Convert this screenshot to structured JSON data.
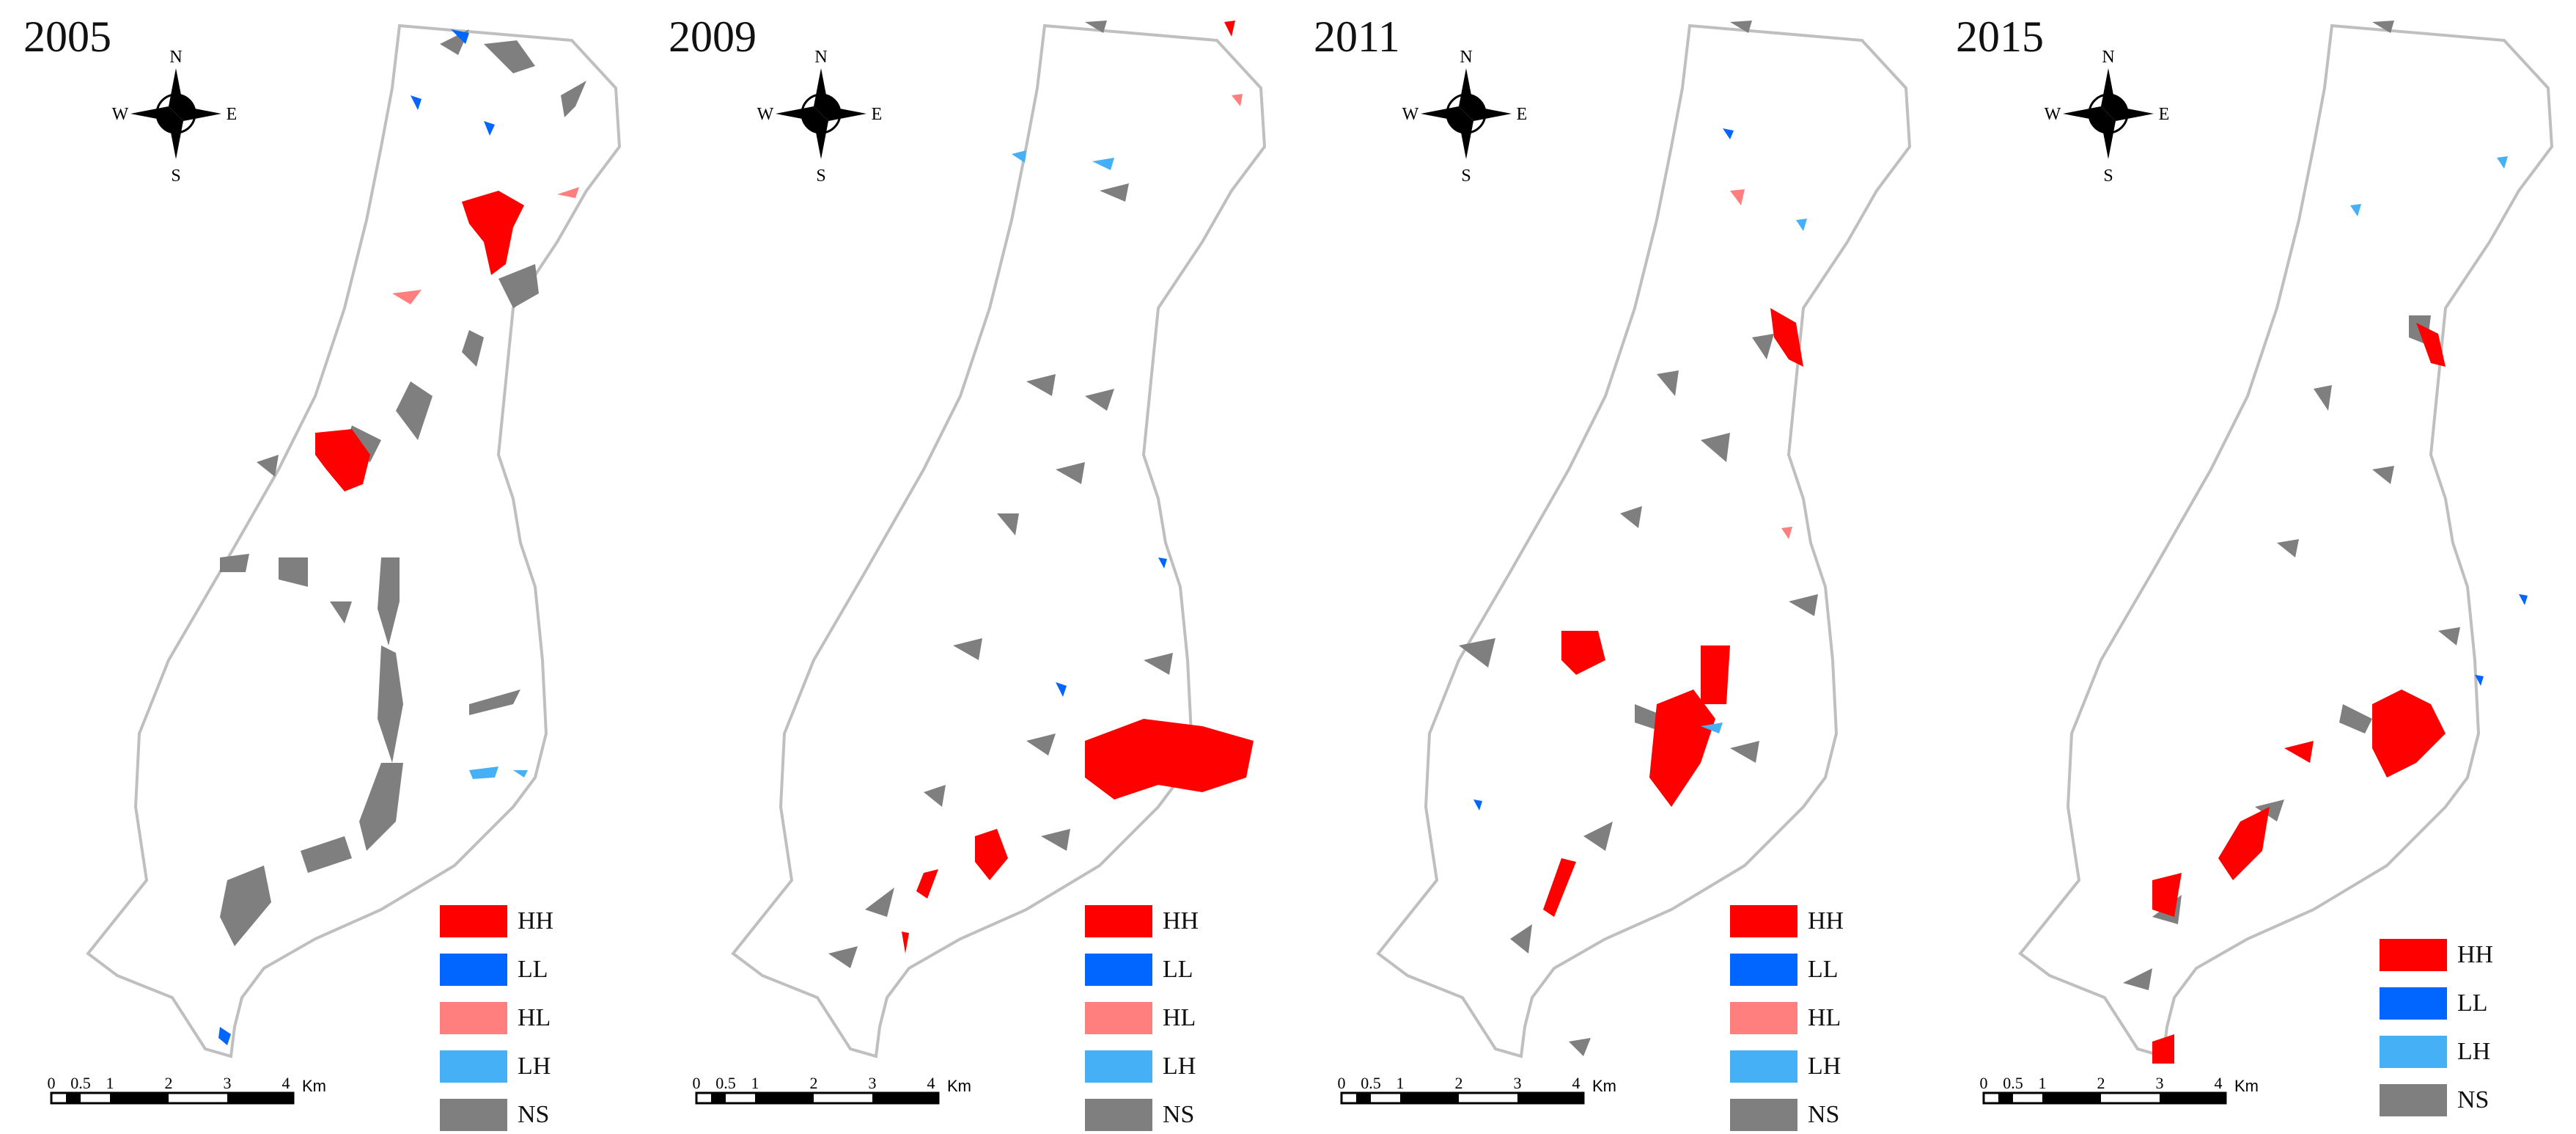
{
  "compass": {
    "north": "N",
    "south": "S",
    "east": "E",
    "west": "W"
  },
  "scale_bar": {
    "ticks": [
      "0",
      "0.5",
      "1",
      "2",
      "3",
      "4"
    ],
    "unit": "Km"
  },
  "legend_categories": {
    "HH": {
      "label": "HH",
      "color": "#ff0000"
    },
    "LL": {
      "label": "LL",
      "color": "#0066ff"
    },
    "HL": {
      "label": "HL",
      "color": "#ff7f7f"
    },
    "LH": {
      "label": "LH",
      "color": "#45b0f5"
    },
    "NS": {
      "label": "NS",
      "color": "#7f7f7f"
    }
  },
  "panels": [
    {
      "year": "2005",
      "legend": [
        {
          "label": "HH",
          "color": "#ff0000"
        },
        {
          "label": "LL",
          "color": "#0066ff"
        },
        {
          "label": "HL",
          "color": "#ff7f7f"
        },
        {
          "label": "LH",
          "color": "#45b0f5"
        },
        {
          "label": "NS",
          "color": "#7f7f7f"
        }
      ]
    },
    {
      "year": "2009",
      "legend": [
        {
          "label": "HH",
          "color": "#ff0000"
        },
        {
          "label": "LL",
          "color": "#0066ff"
        },
        {
          "label": "HL",
          "color": "#ff7f7f"
        },
        {
          "label": "LH",
          "color": "#45b0f5"
        },
        {
          "label": "NS",
          "color": "#7f7f7f"
        }
      ]
    },
    {
      "year": "2011",
      "legend": [
        {
          "label": "HH",
          "color": "#ff0000"
        },
        {
          "label": "LL",
          "color": "#0066ff"
        },
        {
          "label": "HL",
          "color": "#ff7f7f"
        },
        {
          "label": "LH",
          "color": "#45b0f5"
        },
        {
          "label": "NS",
          "color": "#7f7f7f"
        }
      ]
    },
    {
      "year": "2015",
      "legend": [
        {
          "label": "HH",
          "color": "#ff0000"
        },
        {
          "label": "LL",
          "color": "#0066ff"
        },
        {
          "label": "LH",
          "color": "#45b0f5"
        },
        {
          "label": "NS",
          "color": "#7f7f7f"
        }
      ]
    }
  ]
}
